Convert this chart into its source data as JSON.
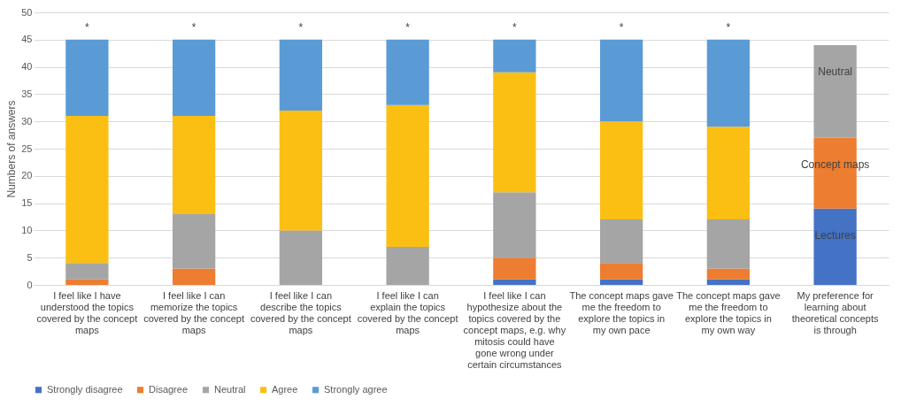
{
  "chart_data": {
    "type": "bar",
    "stacked": true,
    "ylabel": "Numbers of answers",
    "categories": [
      "I feel like I have understood the topics covered by the concept maps",
      "I feel like I can memorize the topics covered by the concept maps",
      "I feel like I can describe the topics covered by the concept maps",
      "I feel like I can explain the topics covered by the concept maps",
      "I feel like I can hypothesize about the topics covered by the concept maps, e.g. why mitosis could have gone wrong under certain circumstances",
      "The concept maps gave me the freedom to explore the topics in my own pace",
      "The concept maps gave me the freedom to explore the topics in my own way",
      "My preference for learning about theoretical concepts is through"
    ],
    "series": [
      {
        "name": "Strongly disagree",
        "color": "#4472c4",
        "values": [
          0,
          0,
          0,
          0,
          1,
          1,
          1,
          14
        ]
      },
      {
        "name": "Disagree",
        "color": "#ed7d31",
        "values": [
          1,
          3,
          0,
          0,
          4,
          3,
          2,
          13
        ]
      },
      {
        "name": "Neutral",
        "color": "#a5a5a5",
        "values": [
          3,
          10,
          10,
          7,
          12,
          8,
          9,
          17
        ]
      },
      {
        "name": "Agree",
        "color": "#fbbf14",
        "values": [
          27,
          18,
          22,
          26,
          22,
          18,
          17,
          0
        ]
      },
      {
        "name": "Strongly agree",
        "color": "#5b9bd5",
        "values": [
          14,
          14,
          13,
          12,
          6,
          15,
          16,
          0
        ]
      }
    ],
    "ylim": [
      0,
      50
    ],
    "yticks": [
      0,
      5,
      10,
      15,
      20,
      25,
      30,
      35,
      40,
      45,
      50
    ],
    "grid": "y",
    "legend": "bottom",
    "annotations": [
      {
        "text": "*",
        "x": "I feel like I have understood the topics covered by the concept maps",
        "y": 45
      },
      {
        "text": "*",
        "x": "I feel like I can memorize the topics covered by the concept maps",
        "y": 45
      },
      {
        "text": "*",
        "x": "I feel like I can describe the topics covered by the concept maps",
        "y": 45
      },
      {
        "text": "*",
        "x": "I feel like I can explain the topics covered by the concept maps",
        "y": 45
      },
      {
        "text": "*",
        "x": "I feel like I can hypothesize about the topics covered by the concept maps, e.g. why mitosis could have gone wrong under certain circumstances",
        "y": 45
      },
      {
        "text": "*",
        "x": "The concept maps gave me the freedom to explore the topics in my own pace",
        "y": 45
      },
      {
        "text": "*",
        "x": "The concept maps gave me the freedom to explore the topics in my own way",
        "y": 45
      },
      {
        "text": "Lectures",
        "x": "My preference for learning about theoretical concepts is through",
        "y": 14
      },
      {
        "text": "Concept maps",
        "x": "My preference for learning about theoretical concepts is through",
        "y": 27
      },
      {
        "text": "Neutral",
        "x": "My preference for learning about theoretical concepts is through",
        "y": 44
      }
    ]
  }
}
